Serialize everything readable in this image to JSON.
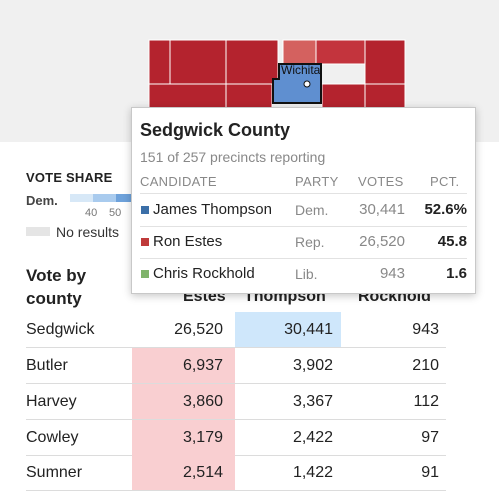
{
  "map": {
    "city_label": "Wichita",
    "colors": {
      "rep_dark": "#b4232e",
      "rep_mid": "#c3343d",
      "rep_light": "#d4615f",
      "dem": "#5f8fd0",
      "bg": "#f0f0f0"
    }
  },
  "legend": {
    "title": "VOTE SHARE",
    "dem_label": "Dem.",
    "ticks": [
      "40",
      "50"
    ],
    "no_results_label": "No results"
  },
  "tooltip": {
    "title": "Sedgwick County",
    "subtitle": "151 of 257 precincts reporting",
    "headers": {
      "candidate": "CANDIDATE",
      "party": "PARTY",
      "votes": "VOTES",
      "pct": "PCT."
    },
    "rows": [
      {
        "name": "James Thompson",
        "party": "Dem.",
        "votes": "30,441",
        "pct": "52.6%",
        "color": "#3b6fa8"
      },
      {
        "name": "Ron Estes",
        "party": "Rep.",
        "votes": "26,520",
        "pct": "45.8",
        "color": "#bf3a3a"
      },
      {
        "name": "Chris Rockhold",
        "party": "Lib.",
        "votes": "943",
        "pct": "1.6",
        "color": "#7fb36b"
      }
    ]
  },
  "table": {
    "title": "Vote by county",
    "columns": {
      "estes": "Estes",
      "thompson": "Thompson",
      "rockhold": "Rockhold"
    },
    "rows": [
      {
        "county": "Sedgwick",
        "estes": "26,520",
        "thompson": "30,441",
        "rockhold": "943",
        "winner": "thompson"
      },
      {
        "county": "Butler",
        "estes": "6,937",
        "thompson": "3,902",
        "rockhold": "210",
        "winner": "estes"
      },
      {
        "county": "Harvey",
        "estes": "3,860",
        "thompson": "3,367",
        "rockhold": "112",
        "winner": "estes"
      },
      {
        "county": "Cowley",
        "estes": "3,179",
        "thompson": "2,422",
        "rockhold": "97",
        "winner": "estes"
      },
      {
        "county": "Sumner",
        "estes": "2,514",
        "thompson": "1,422",
        "rockhold": "91",
        "winner": "estes"
      }
    ]
  }
}
